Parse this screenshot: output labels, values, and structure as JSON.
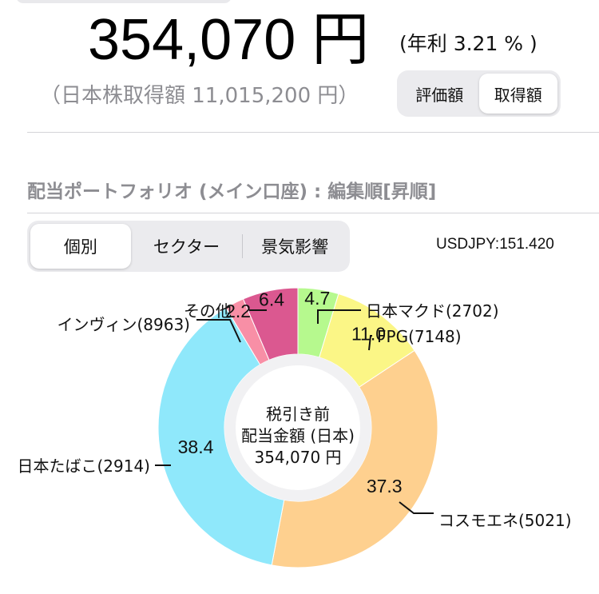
{
  "summary": {
    "amount": "354,070 円",
    "yield": "(年利 3.21 % )",
    "acquisition": "（日本株取得額 11,015,200 円）"
  },
  "value_toggle": {
    "options": [
      "評価額",
      "取得額"
    ],
    "selected": "取得額"
  },
  "section": {
    "title": "配当ポートフォリオ (メイン口座) : 編集順[昇順]"
  },
  "filter_tabs": {
    "options": [
      "個別",
      "セクター",
      "景気影響"
    ],
    "selected": "個別"
  },
  "usdjpy": "USDJPY:151.420",
  "chart_center": {
    "line1": "税引き前",
    "line2": "配当金額 (日本)",
    "line3": "354,070 円"
  },
  "chart_data": {
    "type": "pie",
    "subtype": "donut",
    "unit": "%",
    "categories": [
      "日本マクド(2702)",
      "FPG(7148)",
      "コスモエネ(5021)",
      "日本たばこ(2914)",
      "インヴィン(8963)",
      "その他"
    ],
    "values": [
      4.7,
      11.0,
      37.3,
      38.4,
      2.2,
      6.4
    ],
    "value_labels": [
      "4.7",
      "11.0",
      "37.3",
      "38.4",
      "2.2",
      "6.4"
    ],
    "colors": [
      "#b6f98e",
      "#fbf686",
      "#fed08f",
      "#8fe8fb",
      "#f88fa6",
      "#db5890"
    ]
  }
}
